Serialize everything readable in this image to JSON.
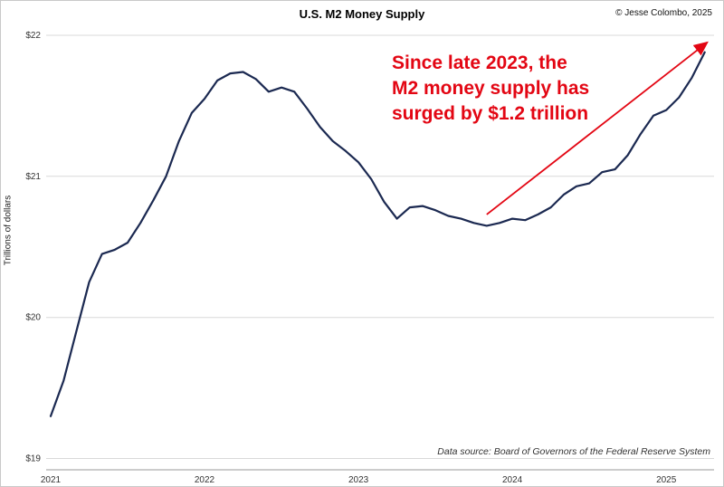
{
  "chart": {
    "title": "U.S. M2 Money Supply",
    "copyright": "© Jesse Colombo, 2025",
    "source": "Data source: Board of Governors of the Federal Reserve System"
  },
  "chart_data": {
    "type": "line",
    "title": "U.S. M2 Money Supply",
    "xlabel": "",
    "ylabel": "Trillions of dollars",
    "ylim": [
      18.92,
      22.0
    ],
    "x_start": "2021-01",
    "frequency": "monthly",
    "series": [
      {
        "name": "M2 Money Supply (trillions of dollars)",
        "values": [
          19.3,
          19.55,
          19.9,
          20.25,
          20.45,
          20.48,
          20.53,
          20.67,
          20.83,
          21.0,
          21.25,
          21.45,
          21.55,
          21.68,
          21.73,
          21.74,
          21.69,
          21.6,
          21.63,
          21.6,
          21.48,
          21.35,
          21.25,
          21.18,
          21.1,
          20.98,
          20.82,
          20.7,
          20.78,
          20.79,
          20.76,
          20.72,
          20.7,
          20.67,
          20.65,
          20.67,
          20.7,
          20.69,
          20.73,
          20.78,
          20.87,
          20.93,
          20.95,
          21.03,
          21.05,
          21.15,
          21.3,
          21.43,
          21.47,
          21.56,
          21.7,
          21.88
        ]
      }
    ],
    "x_ticks": [
      {
        "label": "2021",
        "month_index": 0
      },
      {
        "label": "2022",
        "month_index": 12
      },
      {
        "label": "2023",
        "month_index": 24
      },
      {
        "label": "2024",
        "month_index": 36
      },
      {
        "label": "2025",
        "month_index": 48
      }
    ],
    "y_ticks": [
      {
        "label": "$19",
        "value": 19
      },
      {
        "label": "$20",
        "value": 20
      },
      {
        "label": "$21",
        "value": 21
      },
      {
        "label": "$22",
        "value": 22
      }
    ],
    "grid": "horizontal",
    "legend": "none",
    "colors": {
      "line": "#1b2951",
      "grid": "#d9d9d9",
      "axis": "#9a9a9a"
    },
    "annotation": {
      "text_lines": [
        "Since late 2023, the",
        "M2 money supply has",
        "surged by $1.2 trillion"
      ],
      "color": "#e30613",
      "arrow": {
        "x1_month_index": 34,
        "y1": 20.73,
        "x2_month_index": 51.2,
        "y2": 21.95
      }
    }
  }
}
